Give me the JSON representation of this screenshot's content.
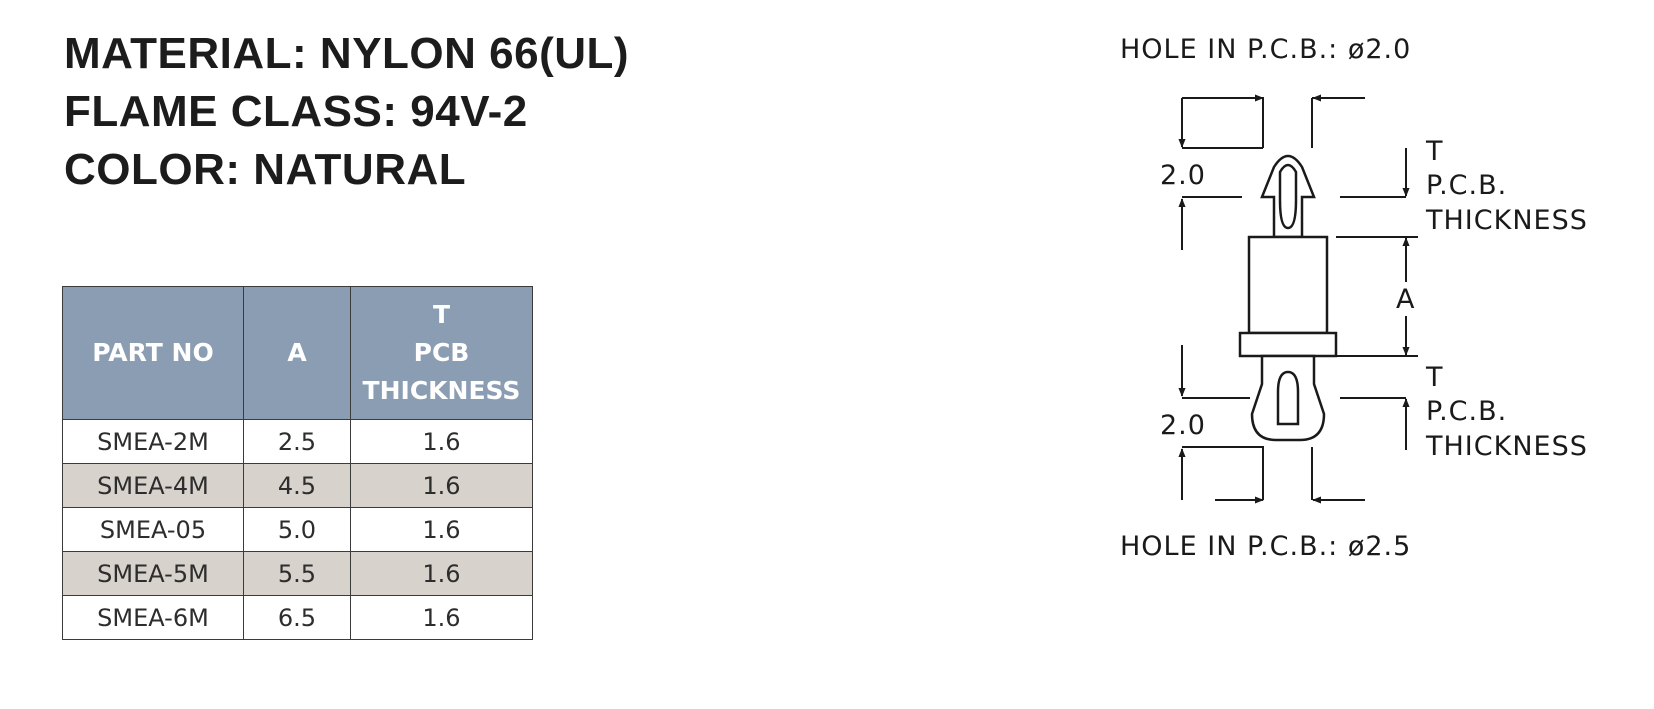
{
  "specs": {
    "material": "MATERIAL: NYLON 66(UL)",
    "flame_class": "FLAME CLASS: 94V-2",
    "color": "COLOR: NATURAL"
  },
  "table": {
    "headers": {
      "part_no": "PART NO",
      "a": "A",
      "t_line1": "T",
      "t_line2": "PCB",
      "t_line3": "THICKNESS"
    },
    "rows": [
      {
        "part_no": "SMEA-2M",
        "a": "2.5",
        "t": "1.6"
      },
      {
        "part_no": "SMEA-4M",
        "a": "4.5",
        "t": "1.6"
      },
      {
        "part_no": "SMEA-05",
        "a": "5.0",
        "t": "1.6"
      },
      {
        "part_no": "SMEA-5M",
        "a": "5.5",
        "t": "1.6"
      },
      {
        "part_no": "SMEA-6M",
        "a": "6.5",
        "t": "1.6"
      }
    ]
  },
  "drawing": {
    "hole_top": "HOLE IN P.C.B.: ø2.0",
    "hole_bottom": "HOLE IN P.C.B.: ø2.5",
    "dim_top": "2.0",
    "dim_bottom": "2.0",
    "dim_a": "A",
    "t_top": "T",
    "pcb_top": "P.C.B.",
    "thickness_top": "THICKNESS",
    "t_bottom": "T",
    "pcb_bottom": "P.C.B.",
    "thickness_bottom": "THICKNESS"
  },
  "colors": {
    "header_bg": "#8a9db3",
    "alt_row_bg": "#d8d2cc",
    "line": "#1a1a1a"
  }
}
